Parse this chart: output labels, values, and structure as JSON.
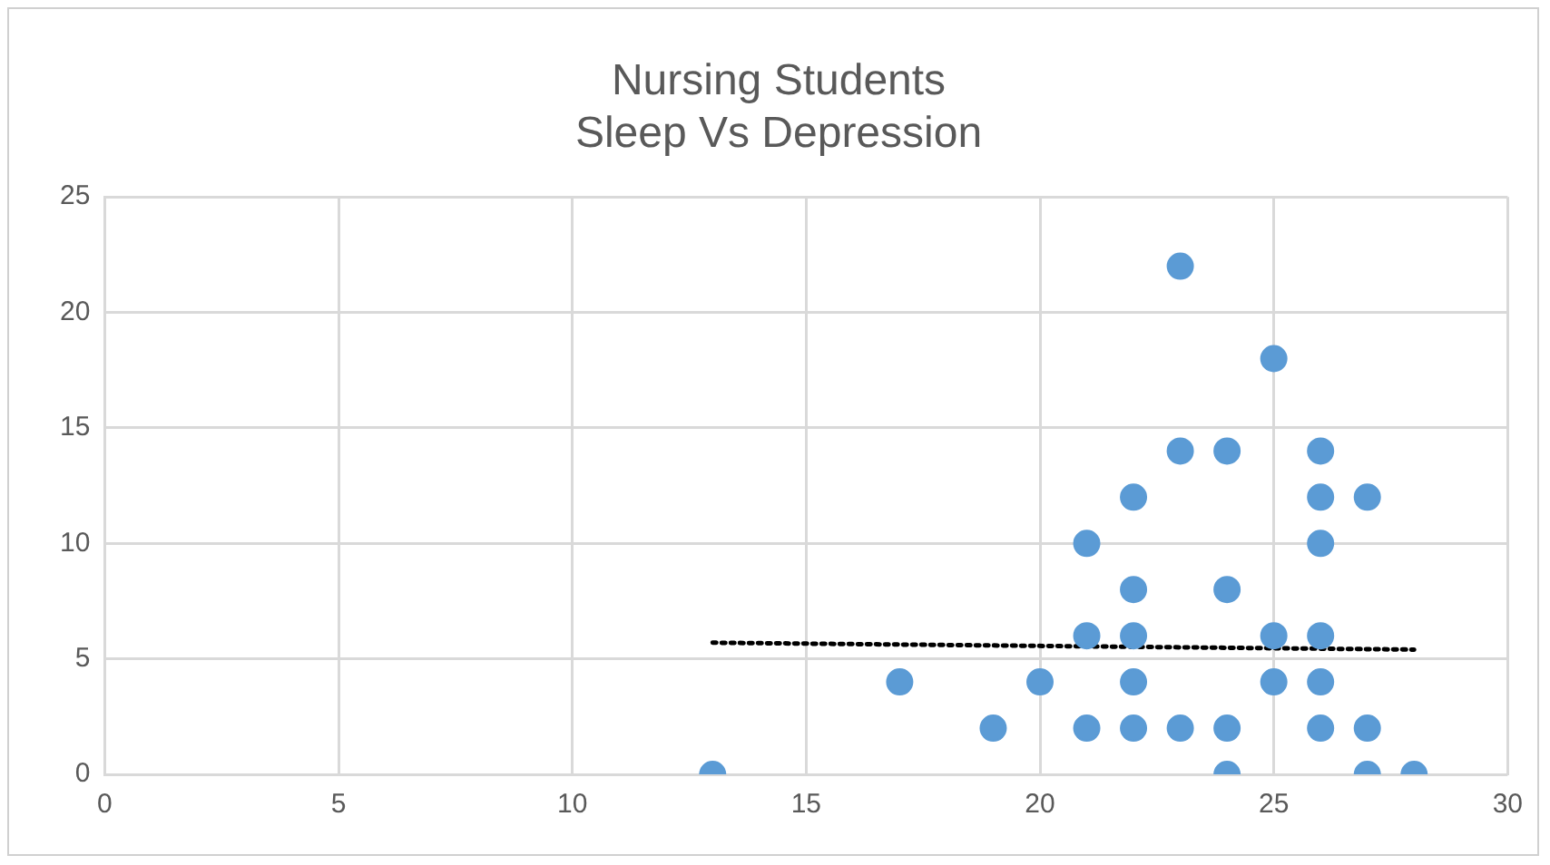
{
  "chart_data": {
    "type": "scatter",
    "title": "Nursing Students\nSleep Vs Depression",
    "series": [
      {
        "color": "#5b9bd5",
        "x": [
          13,
          17,
          19,
          20,
          21,
          21,
          21,
          22,
          22,
          22,
          22,
          22,
          23,
          23,
          23,
          24,
          24,
          24,
          24,
          25,
          25,
          25,
          26,
          26,
          26,
          26,
          26,
          26,
          27,
          27,
          27,
          28
        ],
        "values": [
          0,
          4,
          2,
          4,
          2,
          6,
          10,
          2,
          4,
          6,
          8,
          12,
          2,
          14,
          22,
          0,
          2,
          8,
          14,
          4,
          6,
          18,
          2,
          4,
          6,
          10,
          12,
          14,
          0,
          2,
          12,
          0
        ]
      },
      {
        "type": "line",
        "color": "#000000",
        "line_style": "dotted",
        "marker": "none",
        "x": [
          13,
          28
        ],
        "values": [
          5.7,
          5.4
        ]
      }
    ],
    "xlim": [
      0,
      30
    ],
    "xticks": [
      0,
      5,
      10,
      15,
      20,
      25,
      30
    ],
    "ylim": [
      0,
      25
    ],
    "yticks": [
      0,
      5,
      10,
      15,
      20,
      25
    ],
    "grid": true,
    "legend": false,
    "marker": "circle"
  }
}
